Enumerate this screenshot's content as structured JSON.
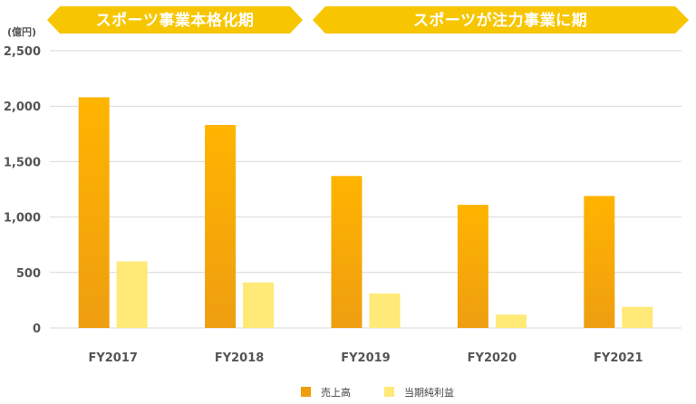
{
  "banners": [
    {
      "text": "スポーツ事業本格化期"
    },
    {
      "text": "スポーツが注力事業に期"
    }
  ],
  "colors": {
    "banner": "#f7c600",
    "sales_top": "#ffb400",
    "sales_bottom": "#ee9e10",
    "profit": "#ffe977",
    "grid": "#d9d9d9",
    "text": "#555555"
  },
  "chart_data": {
    "type": "bar",
    "unit": "(億円)",
    "categories": [
      "FY2017",
      "FY2018",
      "FY2019",
      "FY2020",
      "FY2021"
    ],
    "series": [
      {
        "name": "売上高",
        "values": [
          2080,
          1830,
          1370,
          1110,
          1190
        ]
      },
      {
        "name": "当期純利益",
        "values": [
          600,
          410,
          310,
          120,
          190
        ]
      }
    ],
    "ylim": [
      0,
      2500
    ],
    "yticks": [
      0,
      500,
      1000,
      1500,
      2000,
      2500
    ],
    "ytick_labels": [
      "0",
      "500",
      "1,000",
      "1,500",
      "2,000",
      "2,500"
    ],
    "grid": true,
    "legend_position": "bottom-center"
  }
}
